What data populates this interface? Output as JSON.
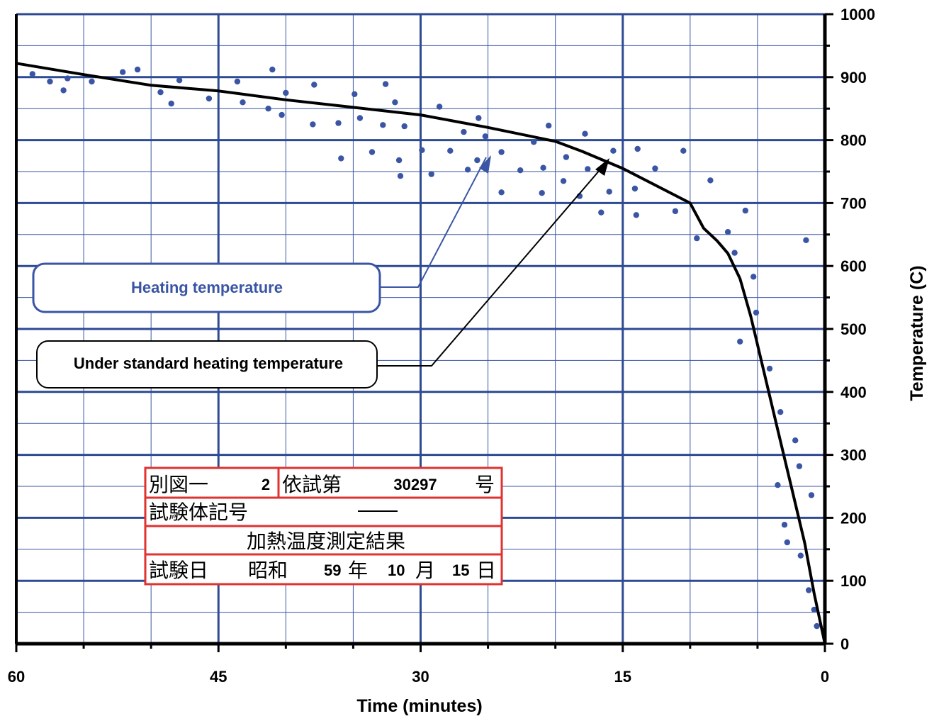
{
  "chart_data": {
    "type": "line",
    "xlabel": "Time (minutes)",
    "ylabel": "Temperature (C)",
    "xlim": [
      60,
      0
    ],
    "x_reversed": true,
    "ylim": [
      0,
      1000
    ],
    "x_ticks": [
      60,
      45,
      30,
      15,
      0
    ],
    "y_ticks": [
      0,
      100,
      200,
      300,
      400,
      500,
      600,
      700,
      800,
      900,
      1000
    ],
    "grid": true,
    "series": [
      {
        "name": "Under standard heating temperature",
        "type": "line",
        "color": "#000000",
        "points": [
          [
            60,
            922
          ],
          [
            55,
            904
          ],
          [
            50,
            887
          ],
          [
            45,
            878
          ],
          [
            40,
            864
          ],
          [
            35,
            852
          ],
          [
            30,
            840
          ],
          [
            25,
            820
          ],
          [
            20,
            798
          ],
          [
            18,
            782
          ],
          [
            15,
            755
          ],
          [
            12,
            722
          ],
          [
            10,
            700
          ],
          [
            9,
            660
          ],
          [
            8,
            640
          ],
          [
            7.2,
            620
          ],
          [
            6.3,
            580
          ],
          [
            5.5,
            520
          ],
          [
            4.5,
            430
          ],
          [
            3.5,
            340
          ],
          [
            2.5,
            250
          ],
          [
            1.5,
            160
          ],
          [
            0.8,
            80
          ],
          [
            0,
            0
          ]
        ]
      },
      {
        "name": "Heating temperature",
        "type": "scatter",
        "color": "#3A55A4",
        "points": [
          [
            58.8,
            905
          ],
          [
            57.5,
            893
          ],
          [
            56.5,
            879
          ],
          [
            56.2,
            898
          ],
          [
            54.4,
            893
          ],
          [
            52.1,
            908
          ],
          [
            51.0,
            912
          ],
          [
            49.3,
            876
          ],
          [
            48.5,
            858
          ],
          [
            47.9,
            895
          ],
          [
            45.7,
            866
          ],
          [
            43.6,
            893
          ],
          [
            43.2,
            860
          ],
          [
            41.3,
            850
          ],
          [
            41.0,
            912
          ],
          [
            40.3,
            840
          ],
          [
            40.0,
            875
          ],
          [
            38.0,
            825
          ],
          [
            37.9,
            888
          ],
          [
            36.1,
            827
          ],
          [
            35.9,
            771
          ],
          [
            34.9,
            873
          ],
          [
            34.5,
            835
          ],
          [
            33.6,
            781
          ],
          [
            32.8,
            824
          ],
          [
            32.6,
            889
          ],
          [
            31.9,
            860
          ],
          [
            31.6,
            768
          ],
          [
            31.5,
            743
          ],
          [
            31.2,
            822
          ],
          [
            29.9,
            784
          ],
          [
            29.2,
            746
          ],
          [
            28.6,
            853
          ],
          [
            27.8,
            783
          ],
          [
            26.8,
            813
          ],
          [
            26.5,
            753
          ],
          [
            25.8,
            768
          ],
          [
            25.7,
            835
          ],
          [
            25.2,
            806
          ],
          [
            24.0,
            781
          ],
          [
            24.0,
            717
          ],
          [
            22.6,
            752
          ],
          [
            21.6,
            797
          ],
          [
            21.0,
            716
          ],
          [
            20.9,
            756
          ],
          [
            20.5,
            823
          ],
          [
            19.4,
            735
          ],
          [
            19.2,
            773
          ],
          [
            18.2,
            711
          ],
          [
            17.8,
            810
          ],
          [
            17.6,
            754
          ],
          [
            16.6,
            685
          ],
          [
            16.0,
            718
          ],
          [
            15.7,
            783
          ],
          [
            14.1,
            723
          ],
          [
            14.0,
            681
          ],
          [
            13.9,
            786
          ],
          [
            12.6,
            755
          ],
          [
            11.1,
            687
          ],
          [
            10.5,
            783
          ],
          [
            9.5,
            644
          ],
          [
            8.5,
            736
          ],
          [
            7.2,
            654
          ],
          [
            6.7,
            621
          ],
          [
            6.3,
            480
          ],
          [
            5.9,
            688
          ],
          [
            5.3,
            583
          ],
          [
            5.1,
            526
          ],
          [
            4.1,
            437
          ],
          [
            3.3,
            368
          ],
          [
            3.5,
            252
          ],
          [
            3.0,
            189
          ],
          [
            2.8,
            161
          ],
          [
            2.2,
            323
          ],
          [
            1.9,
            282
          ],
          [
            1.8,
            140
          ],
          [
            1.4,
            641
          ],
          [
            1.2,
            85
          ],
          [
            1.0,
            236
          ],
          [
            0.8,
            54
          ],
          [
            0.6,
            28
          ]
        ]
      }
    ],
    "annotations": [
      {
        "text": "Heating temperature",
        "color": "#3A55A4"
      },
      {
        "text": "Under standard heating temperature",
        "color": "#000000"
      }
    ]
  },
  "label_box": {
    "row1_a": "別図一",
    "row1_num": "2",
    "row1_b": "依試第",
    "row1_num2": "30297",
    "row1_c": "号",
    "row2_a": "試験体記号",
    "row3": "加熱温度測定結果",
    "row4_a": "試験日",
    "row4_era": "昭和",
    "row4_year": "59",
    "row4_year_kanji": "年",
    "row4_month": "10",
    "row4_month_kanji": "月",
    "row4_day": "15",
    "row4_day_kanji": "日"
  }
}
